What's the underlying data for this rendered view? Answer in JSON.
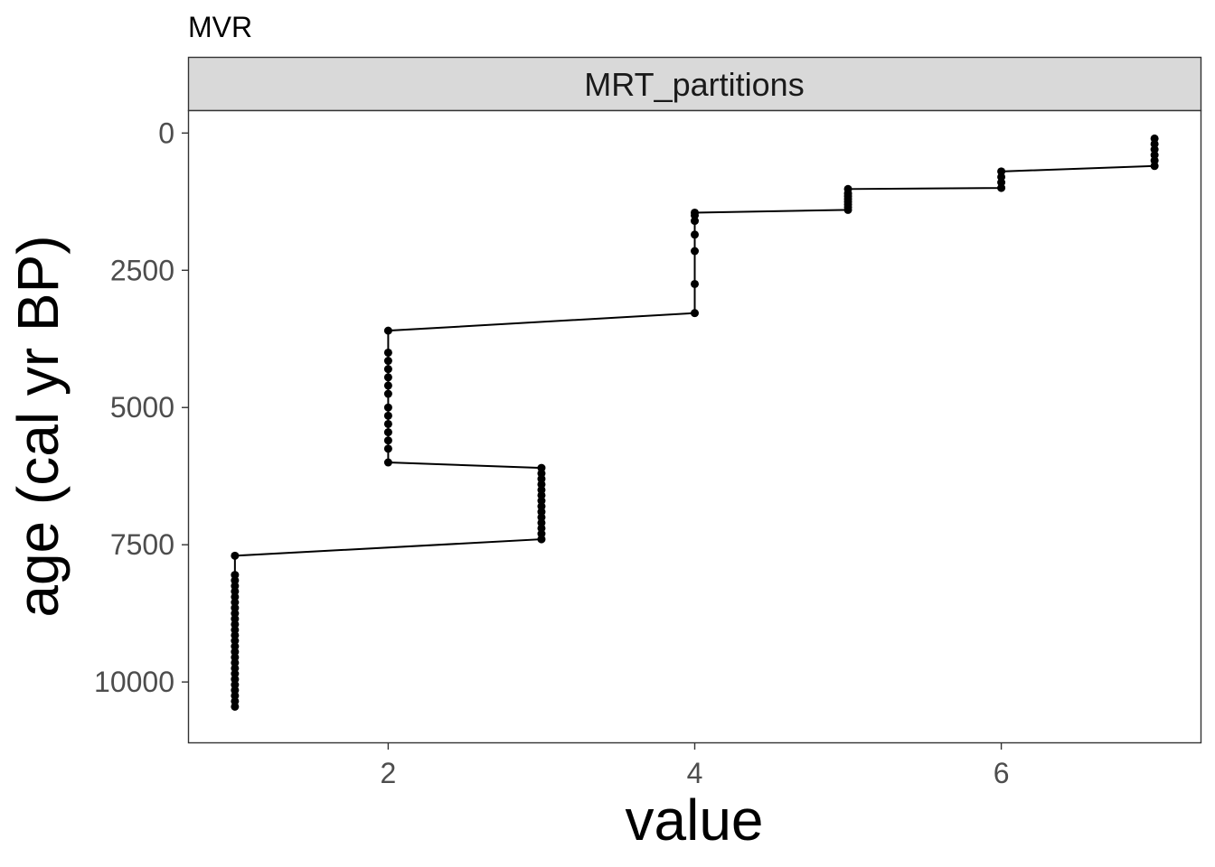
{
  "chart_data": {
    "type": "line",
    "title": "MVR",
    "facet_label": "MRT_partitions",
    "xlabel": "value",
    "ylabel": "age (cal yr BP)",
    "xlim": [
      0.7,
      7.3
    ],
    "ylim": [
      -400,
      11100
    ],
    "y_reversed": true,
    "x_ticks": [
      2,
      4,
      6
    ],
    "x_tick_labels": [
      "2",
      "4",
      "6"
    ],
    "y_ticks": [
      0,
      2500,
      5000,
      7500,
      10000
    ],
    "y_tick_labels": [
      "0",
      "2500",
      "5000",
      "7500",
      "10000"
    ],
    "grid": false,
    "legend": "none",
    "series": [
      {
        "marker": "point",
        "connected": true,
        "points": [
          {
            "x": 7,
            "y": 100
          },
          {
            "x": 7,
            "y": 200
          },
          {
            "x": 7,
            "y": 300
          },
          {
            "x": 7,
            "y": 400
          },
          {
            "x": 7,
            "y": 500
          },
          {
            "x": 7,
            "y": 600
          },
          {
            "x": 6,
            "y": 700
          },
          {
            "x": 6,
            "y": 800
          },
          {
            "x": 6,
            "y": 900
          },
          {
            "x": 6,
            "y": 1000
          },
          {
            "x": 5,
            "y": 1020
          },
          {
            "x": 5,
            "y": 1100
          },
          {
            "x": 5,
            "y": 1150
          },
          {
            "x": 5,
            "y": 1200
          },
          {
            "x": 5,
            "y": 1250
          },
          {
            "x": 5,
            "y": 1300
          },
          {
            "x": 5,
            "y": 1350
          },
          {
            "x": 5,
            "y": 1400
          },
          {
            "x": 4,
            "y": 1450
          },
          {
            "x": 4,
            "y": 1500
          },
          {
            "x": 4,
            "y": 1600
          },
          {
            "x": 4,
            "y": 1850
          },
          {
            "x": 4,
            "y": 2150
          },
          {
            "x": 4,
            "y": 2750
          },
          {
            "x": 4,
            "y": 3280
          },
          {
            "x": 2,
            "y": 3600
          },
          {
            "x": 2,
            "y": 4000
          },
          {
            "x": 2,
            "y": 4150
          },
          {
            "x": 2,
            "y": 4300
          },
          {
            "x": 2,
            "y": 4450
          },
          {
            "x": 2,
            "y": 4600
          },
          {
            "x": 2,
            "y": 4750
          },
          {
            "x": 2,
            "y": 5000
          },
          {
            "x": 2,
            "y": 5150
          },
          {
            "x": 2,
            "y": 5300
          },
          {
            "x": 2,
            "y": 5450
          },
          {
            "x": 2,
            "y": 5600
          },
          {
            "x": 2,
            "y": 5750
          },
          {
            "x": 2,
            "y": 6000
          },
          {
            "x": 3,
            "y": 6100
          },
          {
            "x": 3,
            "y": 6200
          },
          {
            "x": 3,
            "y": 6300
          },
          {
            "x": 3,
            "y": 6400
          },
          {
            "x": 3,
            "y": 6500
          },
          {
            "x": 3,
            "y": 6600
          },
          {
            "x": 3,
            "y": 6700
          },
          {
            "x": 3,
            "y": 6800
          },
          {
            "x": 3,
            "y": 6900
          },
          {
            "x": 3,
            "y": 7000
          },
          {
            "x": 3,
            "y": 7100
          },
          {
            "x": 3,
            "y": 7200
          },
          {
            "x": 3,
            "y": 7300
          },
          {
            "x": 3,
            "y": 7400
          },
          {
            "x": 1,
            "y": 7700
          },
          {
            "x": 1,
            "y": 8050
          },
          {
            "x": 1,
            "y": 8150
          },
          {
            "x": 1,
            "y": 8250
          },
          {
            "x": 1,
            "y": 8350
          },
          {
            "x": 1,
            "y": 8450
          },
          {
            "x": 1,
            "y": 8550
          },
          {
            "x": 1,
            "y": 8650
          },
          {
            "x": 1,
            "y": 8750
          },
          {
            "x": 1,
            "y": 8850
          },
          {
            "x": 1,
            "y": 8950
          },
          {
            "x": 1,
            "y": 9050
          },
          {
            "x": 1,
            "y": 9150
          },
          {
            "x": 1,
            "y": 9250
          },
          {
            "x": 1,
            "y": 9350
          },
          {
            "x": 1,
            "y": 9450
          },
          {
            "x": 1,
            "y": 9550
          },
          {
            "x": 1,
            "y": 9650
          },
          {
            "x": 1,
            "y": 9750
          },
          {
            "x": 1,
            "y": 9850
          },
          {
            "x": 1,
            "y": 9950
          },
          {
            "x": 1,
            "y": 10050
          },
          {
            "x": 1,
            "y": 10150
          },
          {
            "x": 1,
            "y": 10250
          },
          {
            "x": 1,
            "y": 10350
          },
          {
            "x": 1,
            "y": 10450
          }
        ]
      }
    ],
    "colors": {
      "line": "#000000",
      "point": "#000000",
      "strip_fill": "#d9d9d9",
      "panel_border": "#333333",
      "tick_text": "#4d4d4d"
    }
  }
}
